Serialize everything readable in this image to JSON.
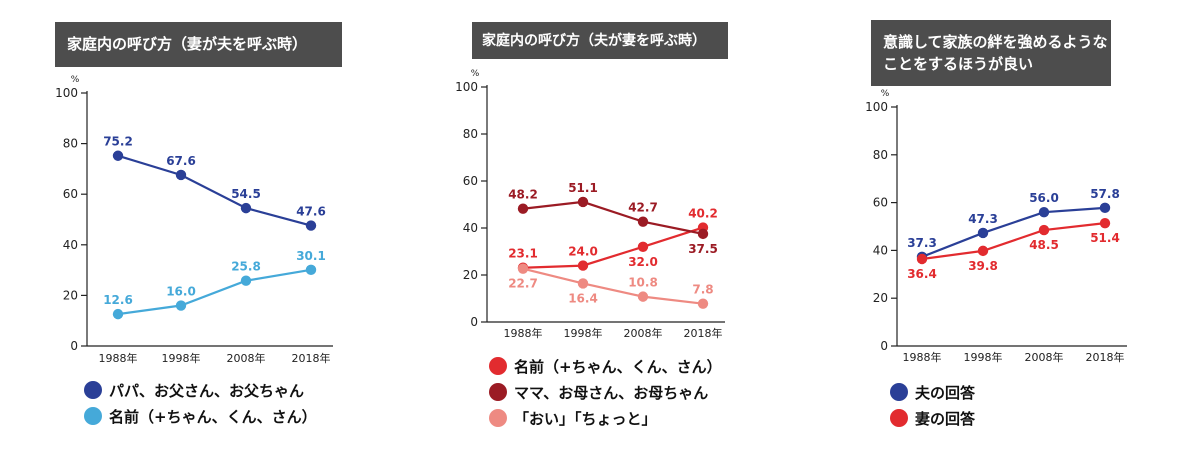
{
  "chart_data": [
    {
      "type": "line",
      "title": [
        "家庭内の呼び方（妻が夫を呼ぶ時）"
      ],
      "unit": "%",
      "categories": [
        "1988年",
        "1998年",
        "2008年",
        "2018年"
      ],
      "ylim": [
        0,
        100
      ],
      "yticks": [
        0,
        20,
        40,
        60,
        80,
        100
      ],
      "series": [
        {
          "name": "パパ、お父さん、お父ちゃん",
          "color": "#2a3f97",
          "values": [
            75.2,
            67.6,
            54.5,
            47.6
          ],
          "labels": [
            "75.2",
            "67.6",
            "54.5",
            "47.6"
          ],
          "label_pos": [
            "above",
            "above",
            "above",
            "above"
          ]
        },
        {
          "name": "名前（+ちゃん、くん、さん）",
          "color": "#45a9d9",
          "values": [
            12.6,
            16.0,
            25.8,
            30.1
          ],
          "labels": [
            "12.6",
            "16.0",
            "25.8",
            "30.1"
          ],
          "label_pos": [
            "above",
            "above",
            "above",
            "above"
          ]
        }
      ]
    },
    {
      "type": "line",
      "title": [
        "家庭内の呼び方（夫が妻を呼ぶ時）"
      ],
      "unit": "%",
      "categories": [
        "1988年",
        "1998年",
        "2008年",
        "2018年"
      ],
      "ylim": [
        0,
        100
      ],
      "yticks": [
        0,
        20,
        40,
        60,
        80,
        100
      ],
      "series": [
        {
          "name": "名前（+ちゃん、くん、さん）",
          "color": "#e22b2f",
          "values": [
            23.1,
            24.0,
            32.0,
            40.2
          ],
          "labels": [
            "23.1",
            "24.0",
            "32.0",
            "40.2"
          ],
          "label_pos": [
            "above",
            "above",
            "below",
            "above"
          ]
        },
        {
          "name": "ママ、お母さん、お母ちゃん",
          "color": "#9b1b24",
          "values": [
            48.2,
            51.1,
            42.7,
            37.5
          ],
          "labels": [
            "48.2",
            "51.1",
            "42.7",
            "37.5"
          ],
          "label_pos": [
            "above",
            "above",
            "above",
            "below"
          ]
        },
        {
          "name": "「おい」「ちょっと」",
          "color": "#ee8a82",
          "values": [
            22.7,
            16.4,
            10.8,
            7.8
          ],
          "labels": [
            "22.7",
            "16.4",
            "10.8",
            "7.8"
          ],
          "label_pos": [
            "below",
            "below",
            "above",
            "above"
          ]
        }
      ]
    },
    {
      "type": "line",
      "title": [
        "意識して家族の絆を強めるような",
        "ことをするほうが良い"
      ],
      "unit": "%",
      "categories": [
        "1988年",
        "1998年",
        "2008年",
        "2018年"
      ],
      "ylim": [
        0,
        100
      ],
      "yticks": [
        0,
        20,
        40,
        60,
        80,
        100
      ],
      "series": [
        {
          "name": "夫の回答",
          "color": "#2a3f97",
          "values": [
            37.3,
            47.3,
            56.0,
            57.8
          ],
          "labels": [
            "37.3",
            "47.3",
            "56.0",
            "57.8"
          ],
          "label_pos": [
            "above",
            "above",
            "above",
            "above"
          ]
        },
        {
          "name": "妻の回答",
          "color": "#e22b2f",
          "values": [
            36.4,
            39.8,
            48.5,
            51.4
          ],
          "labels": [
            "36.4",
            "39.8",
            "48.5",
            "51.4"
          ],
          "label_pos": [
            "below",
            "below",
            "below",
            "below"
          ]
        }
      ]
    }
  ]
}
